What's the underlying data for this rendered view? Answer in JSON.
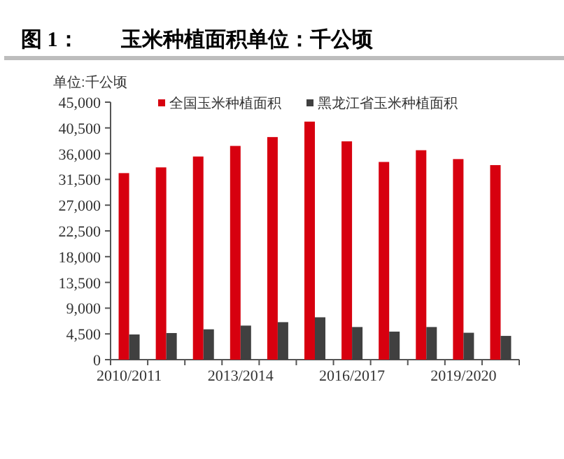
{
  "chart_data": {
    "type": "bar",
    "title": "图 1：　　玉米种植面积单位：千公顷",
    "ylabel": "单位:千公顷",
    "categories": [
      "2010/2011",
      null,
      null,
      "2013/2014",
      null,
      null,
      "2016/2017",
      null,
      null,
      "2019/2020",
      null
    ],
    "series": [
      {
        "name": "全国玉米种植面积",
        "color": "#d7000f",
        "values": [
          32600,
          33600,
          35500,
          37350,
          38900,
          41600,
          38150,
          34550,
          36600,
          35050,
          34000
        ]
      },
      {
        "name": "黑龙江省玉米种植面积",
        "color": "#404040",
        "values": [
          4400,
          4650,
          5300,
          5950,
          6550,
          7400,
          5700,
          4900,
          5700,
          4700,
          4150
        ]
      }
    ],
    "ylim": [
      0,
      45000
    ],
    "yticks": [
      {
        "value": 0,
        "label": "0"
      },
      {
        "value": 4500,
        "label": "4,500"
      },
      {
        "value": 9000,
        "label": "9,000"
      },
      {
        "value": 13500,
        "label": "13,500"
      },
      {
        "value": 18000,
        "label": "18,000"
      },
      {
        "value": 22500,
        "label": "22,500"
      },
      {
        "value": 27000,
        "label": "27,000"
      },
      {
        "value": 31500,
        "label": "31,500"
      },
      {
        "value": 36000,
        "label": "36,000"
      },
      {
        "value": 40500,
        "label": "40,500"
      },
      {
        "value": 45000,
        "label": "45,000"
      }
    ],
    "grid": false,
    "legend": "top"
  }
}
